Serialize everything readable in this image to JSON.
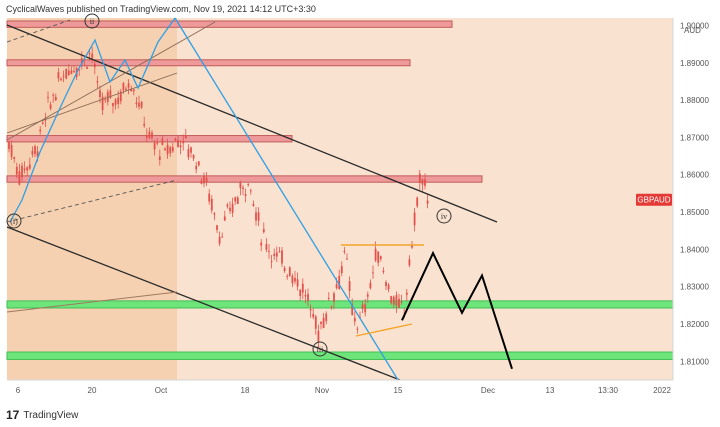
{
  "header": {
    "text": "CyclicalWaves published on TradingView.com, Nov 19, 2021 14:12 UTC+3:30"
  },
  "brand": {
    "text": "TradingView"
  },
  "colors": {
    "plot_bg": "#f9e2cf",
    "shade_bg": "#f5d1b1",
    "candle": "#e4514c",
    "resistance_zone": "#ef9a9a",
    "support_zone": "#6ee57a",
    "channel": "#2b2b2b",
    "blue_line": "#2f9fe6",
    "triangle": "#f4a42a",
    "price_tag": "#e53935"
  },
  "chart_data": {
    "type": "candlestick",
    "symbol": "GBPAUD",
    "currency": "AUD",
    "ylim": [
      1.805,
      1.902
    ],
    "y_ticks": [
      "1.90000",
      "1.89000",
      "1.88000",
      "1.87000",
      "1.86000",
      "1.85000",
      "1.84000",
      "1.83000",
      "1.82000",
      "1.81000"
    ],
    "x_ticks": [
      "6",
      "20",
      "Oct",
      "18",
      "Nov",
      "15",
      "Dec",
      "13",
      "13:30",
      "2022"
    ],
    "price_label": "GBPAUD",
    "wave_labels": [
      "ii",
      "(i)",
      "iii",
      "iv"
    ],
    "zones": [
      {
        "kind": "resistance",
        "low": 1.8995,
        "high": 1.9012
      },
      {
        "kind": "resistance",
        "low": 1.8892,
        "high": 1.8908
      },
      {
        "kind": "resistance",
        "low": 1.8688,
        "high": 1.8705
      },
      {
        "kind": "resistance",
        "low": 1.858,
        "high": 1.8597
      },
      {
        "kind": "support",
        "low": 1.8243,
        "high": 1.8262
      },
      {
        "kind": "support",
        "low": 1.8105,
        "high": 1.8125
      }
    ],
    "projection": [
      1.821,
      1.839,
      1.823,
      1.833,
      1.808
    ]
  }
}
